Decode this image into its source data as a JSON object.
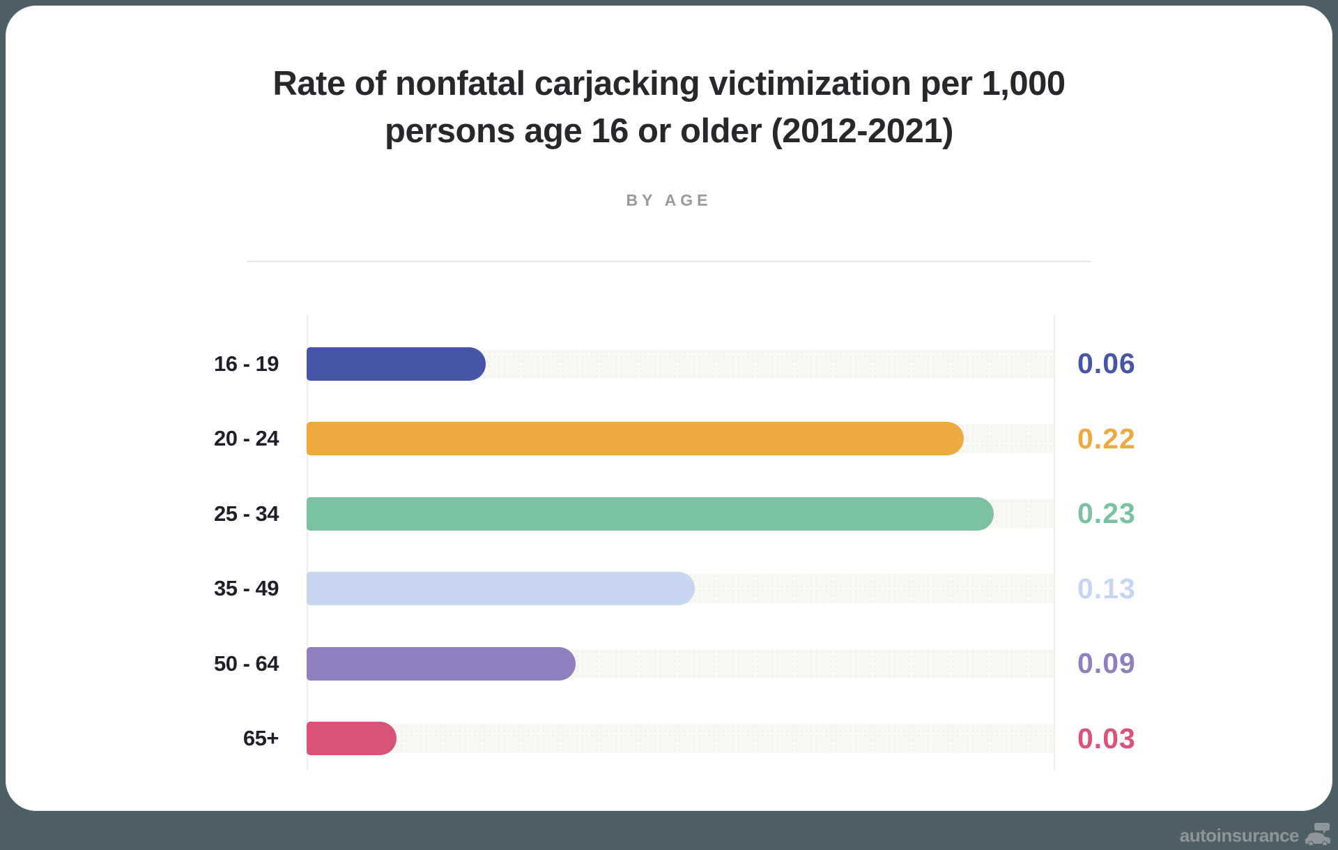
{
  "page": {
    "background_color": "#4c5f66",
    "watermark_text": "autoinsurance"
  },
  "header": {
    "title": "Rate of nonfatal carjacking victimization per 1,000 persons age 16 or older (2012-2021)",
    "subtitle": "BY AGE"
  },
  "chart_data": {
    "type": "bar",
    "orientation": "horizontal",
    "title": "Rate of nonfatal carjacking victimization per 1,000 persons age 16 or older (2012-2021)",
    "subtitle": "BY AGE",
    "categories": [
      "16 - 19",
      "20 - 24",
      "25 - 34",
      "35 - 49",
      "50 - 64",
      "65+"
    ],
    "values": [
      0.06,
      0.22,
      0.23,
      0.13,
      0.09,
      0.03
    ],
    "value_labels": [
      "0.06",
      "0.22",
      "0.23",
      "0.13",
      "0.09",
      "0.03"
    ],
    "bar_colors": [
      "#4655a6",
      "#ecaa41",
      "#7cc0a2",
      "#c7d6f0",
      "#8f7fbc",
      "#d95278"
    ],
    "xlim": [
      0,
      0.25
    ],
    "track_color": "#f7f7f4",
    "grid": false,
    "legend_position": "none",
    "value_label_position": "right"
  }
}
